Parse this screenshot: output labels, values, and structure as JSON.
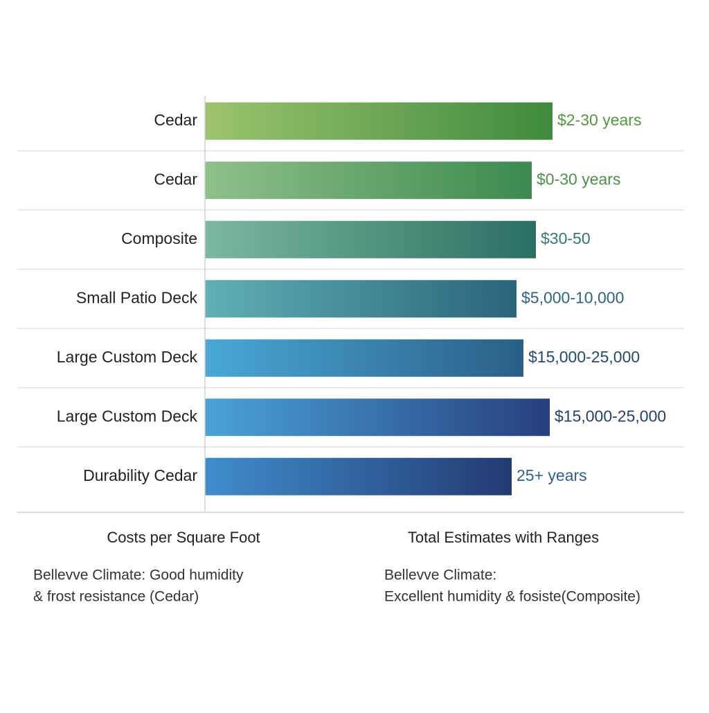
{
  "chart_data": {
    "type": "hbar",
    "categories": [
      "Cedar",
      "Cedar",
      "Composite",
      "Small Patio Deck",
      "Large Custom Deck",
      "Large Custom Deck",
      "Durability Cedar"
    ],
    "values": [
      502,
      472,
      478,
      450,
      460,
      498,
      443
    ],
    "range_labels": [
      "$2-30 years",
      "$0-30 years",
      "$30-50",
      "$5,000-10,000",
      "$15,000-25,000",
      "$15,000-25,000",
      "25+ years"
    ],
    "bar_colors": [
      {
        "from": "#9cc46e",
        "to": "#3f8a3e"
      },
      {
        "from": "#8fc08a",
        "to": "#3c8a4f"
      },
      {
        "from": "#7ab9a0",
        "to": "#2b6f62"
      },
      {
        "from": "#5fb0b4",
        "to": "#2a6479"
      },
      {
        "from": "#49a8d6",
        "to": "#2a5f87"
      },
      {
        "from": "#4aa3d8",
        "to": "#273f7e"
      },
      {
        "from": "#3f8dcc",
        "to": "#233a72"
      }
    ],
    "label_colors": [
      "#4f9a3c",
      "#4a9346",
      "#2f7a72",
      "#2d6482",
      "#234a6e",
      "#233f6e",
      "#2f5f8e"
    ],
    "footer": {
      "left_heading": "Costs per Square Foot",
      "right_heading": "Total Estimates with Ranges",
      "left_note": [
        "Bellevve Climate: Good humidity",
        "& frost resistance (Cedar)"
      ],
      "right_note": [
        "Bellevve Climate:",
        "Excellent humidity & fosiste(Composite)"
      ]
    }
  }
}
